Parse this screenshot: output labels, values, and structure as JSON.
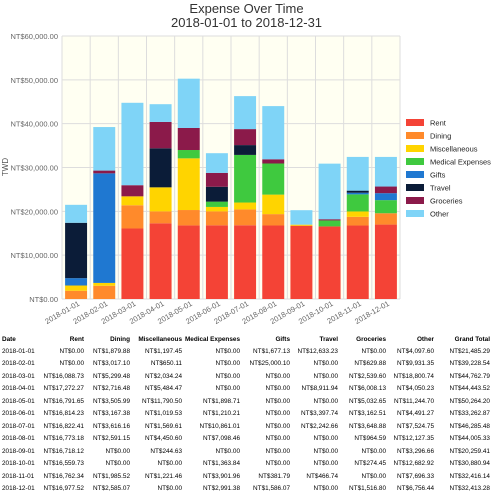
{
  "title": "Expense Over Time",
  "subtitle": "2018-01-01 to 2018-12-31",
  "chart_data": {
    "type": "bar",
    "stacked": true,
    "title": "Expense Over Time",
    "subtitle": "2018-01-01 to 2018-12-31",
    "xlabel": "",
    "ylabel": "TWD",
    "ylim": [
      0,
      60000
    ],
    "yticks": [
      0,
      10000,
      20000,
      30000,
      40000,
      50000,
      60000
    ],
    "ytick_labels": [
      "NT$0.00",
      "NT$10,000.00",
      "NT$20,000.00",
      "NT$30,000.00",
      "NT$40,000.00",
      "NT$50,000.00",
      "NT$60,000.00"
    ],
    "grid": true,
    "legend_position": "right",
    "categories": [
      "2018-01-01",
      "2018-02-01",
      "2018-03-01",
      "2018-04-01",
      "2018-05-01",
      "2018-06-01",
      "2018-07-01",
      "2018-08-01",
      "2018-09-01",
      "2018-10-01",
      "2018-11-01",
      "2018-12-01"
    ],
    "series": [
      {
        "name": "Rent",
        "color": "#f44336",
        "values": [
          0,
          0,
          16088.73,
          17272.27,
          16791.65,
          16814.23,
          16822.41,
          16773.18,
          16718.12,
          16559.73,
          16762.34,
          16977.52
        ]
      },
      {
        "name": "Dining",
        "color": "#ff8a2b",
        "values": [
          1879.88,
          3017.1,
          5299.48,
          2716.48,
          3505.99,
          3167.38,
          3616.16,
          2591.15,
          0,
          0,
          1985.52,
          2585.07
        ]
      },
      {
        "name": "Miscellaneous",
        "color": "#ffd400",
        "values": [
          1197.45,
          650.11,
          2034.24,
          5484.47,
          11790.5,
          1019.53,
          1569.61,
          4450.6,
          244.63,
          0,
          1221.46,
          0
        ]
      },
      {
        "name": "Medical Expenses",
        "color": "#3fc93f",
        "values": [
          0,
          0,
          0,
          0,
          1898.71,
          1210.21,
          10861.01,
          7098.46,
          0,
          1363.84,
          3901.96,
          2991.38
        ]
      },
      {
        "name": "Gifts",
        "color": "#1f78d1",
        "values": [
          1677.13,
          25000.1,
          0,
          0,
          0,
          0,
          0,
          0,
          0,
          0,
          381.79,
          1586.07
        ]
      },
      {
        "name": "Travel",
        "color": "#0b1c38",
        "values": [
          12633.23,
          0,
          0,
          8911.94,
          0,
          3397.74,
          2242.66,
          0,
          0,
          0,
          466.74,
          0
        ]
      },
      {
        "name": "Groceries",
        "color": "#8b1a4a",
        "values": [
          0,
          629.88,
          2539.6,
          6008.13,
          5032.65,
          3162.51,
          3648.88,
          964.59,
          0,
          274.45,
          0,
          1516.8
        ]
      },
      {
        "name": "Other",
        "color": "#7fd4f7",
        "values": [
          4097.6,
          9931.35,
          18800.74,
          4050.23,
          11244.7,
          4491.27,
          7524.75,
          12127.35,
          3296.66,
          12682.92,
          7696.33,
          6756.44
        ]
      }
    ]
  },
  "table": {
    "headers": [
      "Date",
      "Rent",
      "Dining",
      "Miscellaneous",
      "Medical Expenses",
      "Gifts",
      "Travel",
      "Groceries",
      "Other",
      "Grand Total"
    ],
    "rows": [
      [
        "2018-01-01",
        "NT$0.00",
        "NT$1,879.88",
        "NT$1,197.45",
        "NT$0.00",
        "NT$1,677.13",
        "NT$12,633.23",
        "NT$0.00",
        "NT$4,097.60",
        "NT$21,485.29"
      ],
      [
        "2018-02-01",
        "NT$0.00",
        "NT$3,017.10",
        "NT$650.11",
        "NT$0.00",
        "NT$25,000.10",
        "NT$0.00",
        "NT$629.88",
        "NT$9,931.35",
        "NT$39,228.54"
      ],
      [
        "2018-03-01",
        "NT$16,088.73",
        "NT$5,299.48",
        "NT$2,034.24",
        "NT$0.00",
        "NT$0.00",
        "NT$0.00",
        "NT$2,539.60",
        "NT$18,800.74",
        "NT$44,762.79"
      ],
      [
        "2018-04-01",
        "NT$17,272.27",
        "NT$2,716.48",
        "NT$5,484.47",
        "NT$0.00",
        "NT$0.00",
        "NT$8,911.94",
        "NT$6,008.13",
        "NT$4,050.23",
        "NT$44,443.52"
      ],
      [
        "2018-05-01",
        "NT$16,791.65",
        "NT$3,505.99",
        "NT$11,790.50",
        "NT$1,898.71",
        "NT$0.00",
        "NT$0.00",
        "NT$5,032.65",
        "NT$11,244.70",
        "NT$50,264.20"
      ],
      [
        "2018-06-01",
        "NT$16,814.23",
        "NT$3,167.38",
        "NT$1,019.53",
        "NT$1,210.21",
        "NT$0.00",
        "NT$3,397.74",
        "NT$3,162.51",
        "NT$4,491.27",
        "NT$33,262.87"
      ],
      [
        "2018-07-01",
        "NT$16,822.41",
        "NT$3,616.16",
        "NT$1,569.61",
        "NT$10,861.01",
        "NT$0.00",
        "NT$2,242.66",
        "NT$3,648.88",
        "NT$7,524.75",
        "NT$46,285.48"
      ],
      [
        "2018-08-01",
        "NT$16,773.18",
        "NT$2,591.15",
        "NT$4,450.60",
        "NT$7,098.46",
        "NT$0.00",
        "NT$0.00",
        "NT$964.59",
        "NT$12,127.35",
        "NT$44,005.33"
      ],
      [
        "2018-09-01",
        "NT$16,718.12",
        "NT$0.00",
        "NT$244.63",
        "NT$0.00",
        "NT$0.00",
        "NT$0.00",
        "NT$0.00",
        "NT$3,296.66",
        "NT$20,259.41"
      ],
      [
        "2018-10-01",
        "NT$16,559.73",
        "NT$0.00",
        "NT$0.00",
        "NT$1,363.84",
        "NT$0.00",
        "NT$0.00",
        "NT$274.45",
        "NT$12,682.92",
        "NT$30,880.94"
      ],
      [
        "2018-11-01",
        "NT$16,762.34",
        "NT$1,985.52",
        "NT$1,221.46",
        "NT$3,901.96",
        "NT$381.79",
        "NT$466.74",
        "NT$0.00",
        "NT$7,696.33",
        "NT$32,416.14"
      ],
      [
        "2018-12-01",
        "NT$16,977.52",
        "NT$2,585.07",
        "NT$0.00",
        "NT$2,991.38",
        "NT$1,586.07",
        "NT$0.00",
        "NT$1,516.80",
        "NT$6,756.44",
        "NT$32,413.28"
      ]
    ]
  }
}
